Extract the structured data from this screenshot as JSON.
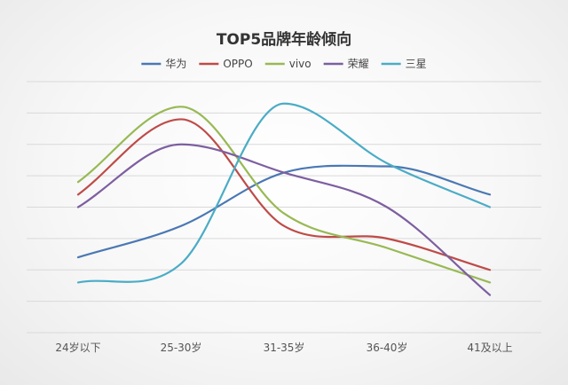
{
  "chart_data": {
    "type": "line",
    "title": "TOP5品牌年龄倾向",
    "xlabel": "",
    "ylabel": "",
    "categories": [
      "24岁以下",
      "25-30岁",
      "31-35岁",
      "36-40岁",
      "41及以上"
    ],
    "ylim": [
      0,
      8
    ],
    "grid": true,
    "legend": "top",
    "smooth": true,
    "series": [
      {
        "name": "华为",
        "color": "#4a78b4",
        "values": [
          2.4,
          3.4,
          5.1,
          5.3,
          4.4
        ]
      },
      {
        "name": "OPPO",
        "color": "#be4b48",
        "values": [
          4.4,
          6.8,
          3.4,
          3.0,
          2.0
        ]
      },
      {
        "name": "vivo",
        "color": "#98b954",
        "values": [
          4.8,
          7.2,
          3.8,
          2.7,
          1.6
        ]
      },
      {
        "name": "荣耀",
        "color": "#7d5fa0",
        "values": [
          4.0,
          6.0,
          5.1,
          4.0,
          1.2
        ]
      },
      {
        "name": "三星",
        "color": "#4bacc6",
        "values": [
          1.6,
          2.2,
          7.3,
          5.4,
          4.0
        ]
      }
    ]
  }
}
